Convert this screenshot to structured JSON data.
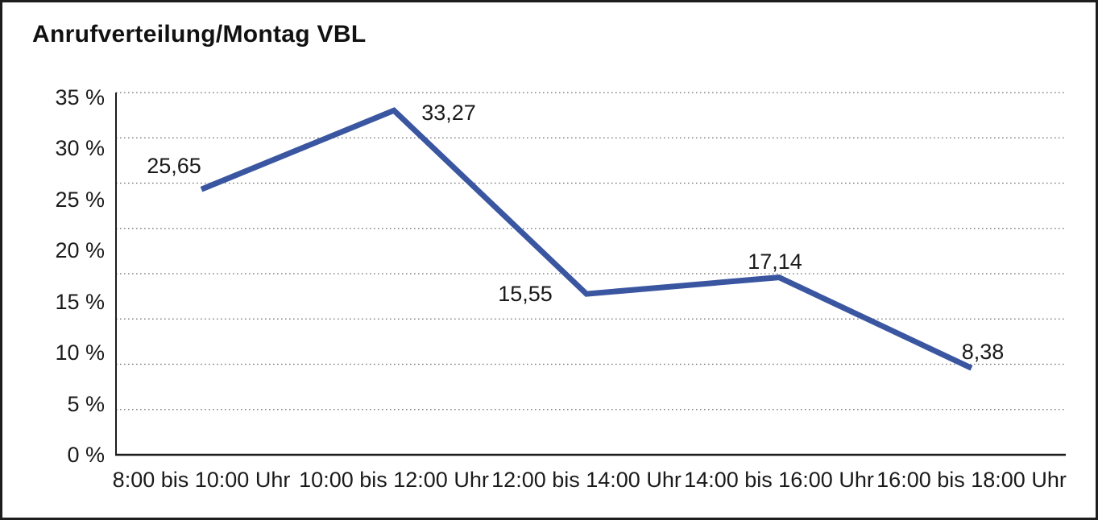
{
  "chart_data": {
    "type": "line",
    "title": "Anrufverteilung/Montag VBL",
    "categories": [
      "8:00 bis 10:00 Uhr",
      "10:00 bis 12:00 Uhr",
      "12:00 bis 14:00 Uhr",
      "14:00 bis 16:00 Uhr",
      "16:00 bis 18:00 Uhr"
    ],
    "values": [
      25.65,
      33.27,
      15.55,
      17.14,
      8.38
    ],
    "data_labels": [
      "25,65",
      "33,27",
      "15,55",
      "17,14",
      "8,38"
    ],
    "y_tick_labels": [
      "35 %",
      "30 %",
      "25 %",
      "20 %",
      "15 %",
      "10 %",
      "5 %",
      "0 %"
    ],
    "ylim": [
      0,
      35
    ],
    "y_tick_step": 5,
    "xlabel": "",
    "ylabel": "",
    "legend": "none",
    "grid": "horizontal-dotted",
    "colors": {
      "series_line": "#3A56A1",
      "grid_dots": "#6e6e6e",
      "axis": "#1c1c1c",
      "text": "#1a1a1a",
      "frame_border": "#1e1e1e"
    }
  }
}
